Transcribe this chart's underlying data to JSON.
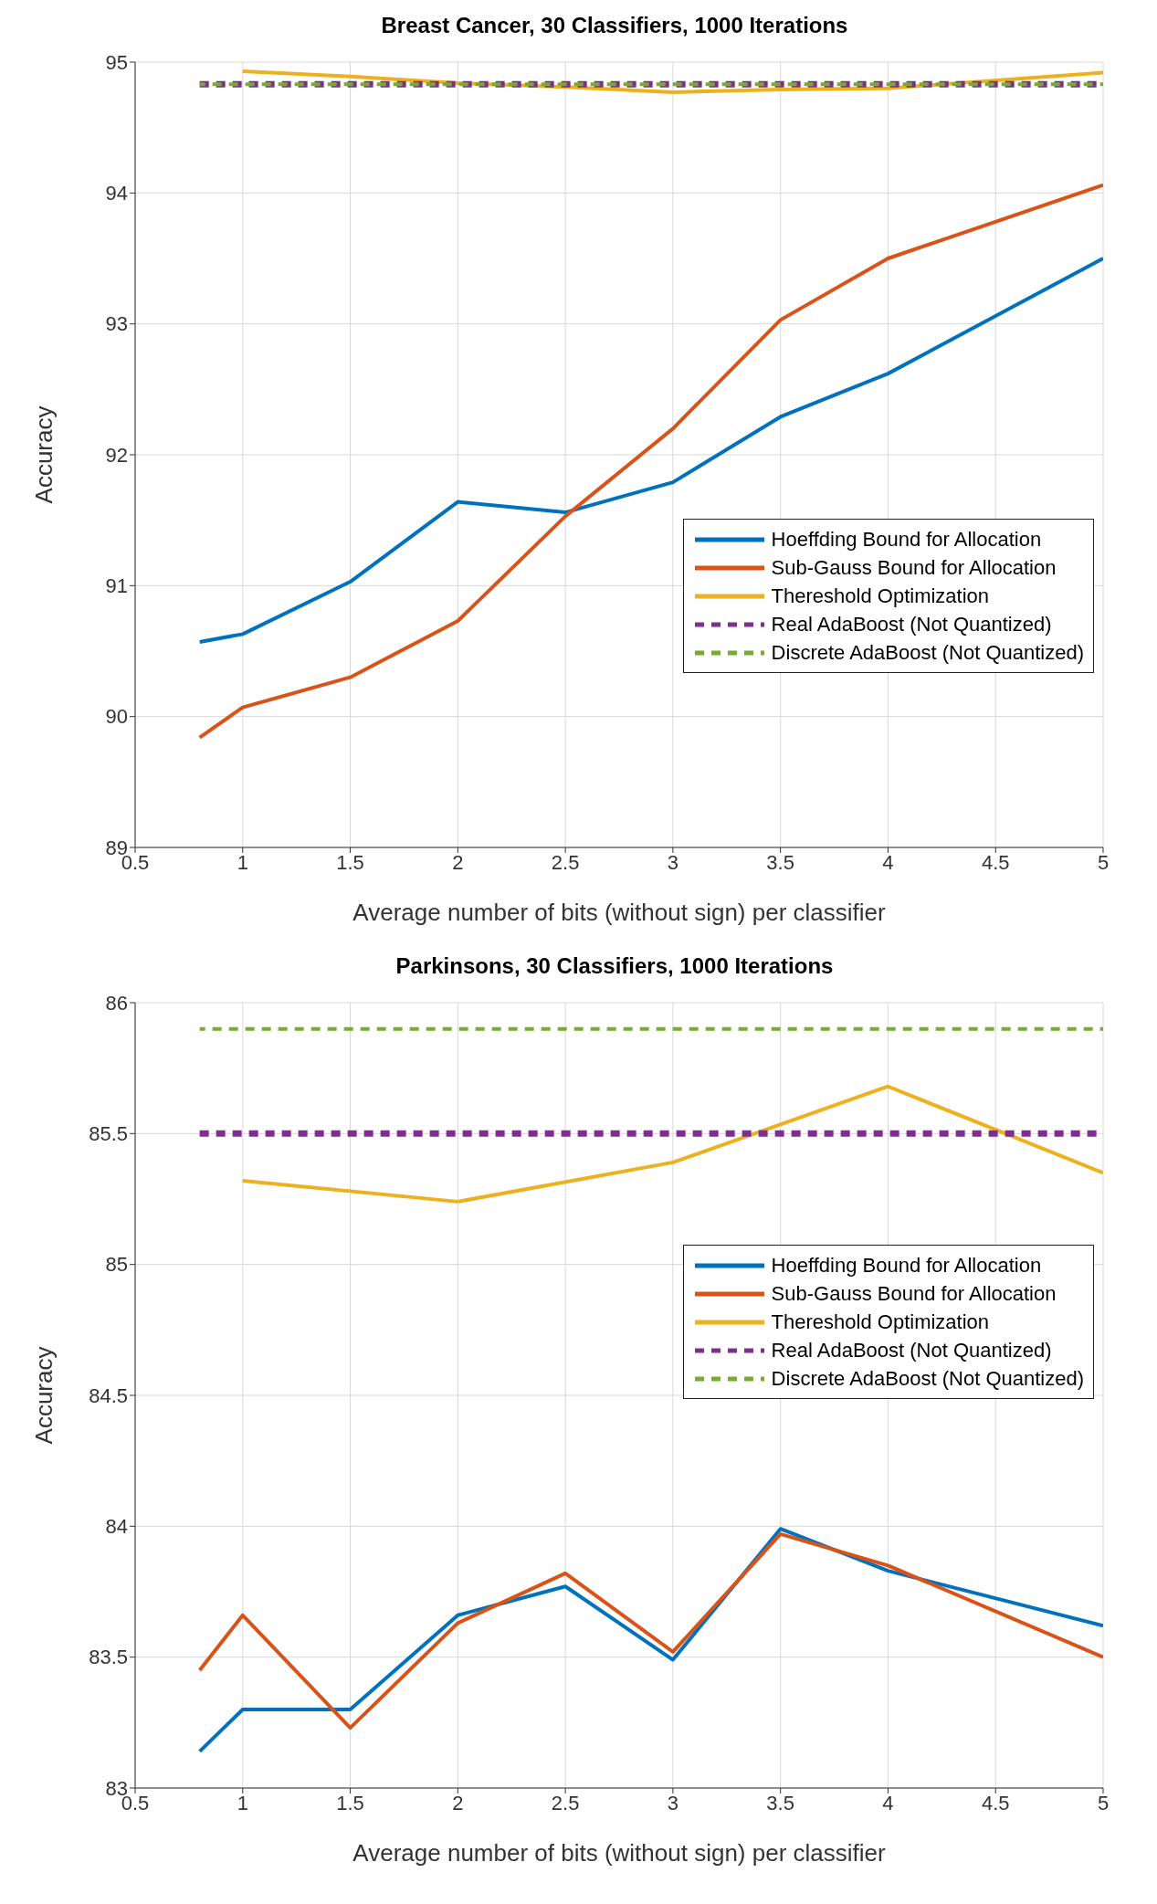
{
  "chart_data": [
    {
      "type": "line",
      "title": "Breast Cancer, 30 Classifiers, 1000 Iterations",
      "xlabel": "Average number of bits (without sign) per classifier",
      "ylabel": "Accuracy",
      "xlim": [
        0.5,
        5
      ],
      "xticks": [
        0.5,
        1,
        1.5,
        2,
        2.5,
        3,
        3.5,
        4,
        4.5,
        5
      ],
      "ylim": [
        89,
        95
      ],
      "yticks": [
        89,
        90,
        91,
        92,
        93,
        94,
        95
      ],
      "grid": true,
      "legend": "bottom right",
      "marker": "none",
      "series": [
        {
          "name": "Hoeffding Bound for Allocation",
          "color": "#0072bd",
          "x": [
            0.8,
            1,
            1.5,
            2,
            2.5,
            3,
            3.5,
            4,
            5
          ],
          "values": [
            90.57,
            90.63,
            91.03,
            91.64,
            91.56,
            91.79,
            92.29,
            92.62,
            93.5
          ]
        },
        {
          "name": "Sub-Gauss Bound for Allocation",
          "color": "#d95319",
          "x": [
            0.8,
            1,
            1.5,
            2,
            2.5,
            3,
            3.5,
            4,
            5
          ],
          "values": [
            89.84,
            90.07,
            90.3,
            90.73,
            91.53,
            92.2,
            93.03,
            93.5,
            94.06
          ]
        },
        {
          "name": "Thereshold Optimization",
          "color": "#edb120",
          "x": [
            1,
            1.5,
            2,
            2.5,
            3,
            3.5,
            4,
            5
          ],
          "values": [
            94.93,
            94.89,
            94.84,
            94.81,
            94.77,
            94.79,
            94.8,
            94.92
          ]
        },
        {
          "name": "Real AdaBoost (Not Quantized)",
          "color": "#7e2f8e",
          "line_style": "dashed",
          "x": [
            0.8,
            5
          ],
          "values": [
            94.83,
            94.83
          ]
        },
        {
          "name": "Discrete AdaBoost (Not Quantized)",
          "color": "#77ac30",
          "line_style": "dashed",
          "x": [
            0.8,
            5
          ],
          "values": [
            94.83,
            94.83
          ]
        }
      ]
    },
    {
      "type": "line",
      "title": "Parkinsons, 30 Classifiers, 1000 Iterations",
      "xlabel": "Average number of bits (without sign) per classifier",
      "ylabel": "Accuracy",
      "xlim": [
        0.5,
        5
      ],
      "xticks": [
        0.5,
        1,
        1.5,
        2,
        2.5,
        3,
        3.5,
        4,
        4.5,
        5
      ],
      "ylim": [
        83,
        86
      ],
      "yticks": [
        83,
        83.5,
        84,
        84.5,
        85,
        85.5,
        86
      ],
      "grid": true,
      "legend": "right",
      "marker": "none",
      "series": [
        {
          "name": "Hoeffding Bound for Allocation",
          "color": "#0072bd",
          "x": [
            0.8,
            1,
            1.5,
            2,
            2.5,
            3,
            3.5,
            4,
            5
          ],
          "values": [
            83.14,
            83.3,
            83.3,
            83.66,
            83.77,
            83.49,
            83.99,
            83.83,
            83.62
          ]
        },
        {
          "name": "Sub-Gauss Bound for Allocation",
          "color": "#d95319",
          "x": [
            0.8,
            1,
            1.5,
            2,
            2.5,
            3,
            3.5,
            4,
            5
          ],
          "values": [
            83.45,
            83.66,
            83.23,
            83.63,
            83.82,
            83.52,
            83.97,
            83.85,
            83.5
          ]
        },
        {
          "name": "Thereshold Optimization",
          "color": "#edb120",
          "x": [
            1,
            2,
            3,
            4,
            5
          ],
          "values": [
            85.32,
            85.24,
            85.39,
            85.68,
            85.35
          ]
        },
        {
          "name": "Real AdaBoost (Not Quantized)",
          "color": "#7e2f8e",
          "line_style": "dashed",
          "x": [
            0.8,
            5
          ],
          "values": [
            85.5,
            85.5
          ]
        },
        {
          "name": "Discrete AdaBoost (Not Quantized)",
          "color": "#77ac30",
          "line_style": "dashed",
          "x": [
            0.8,
            5
          ],
          "values": [
            85.9,
            85.9
          ]
        }
      ]
    }
  ]
}
